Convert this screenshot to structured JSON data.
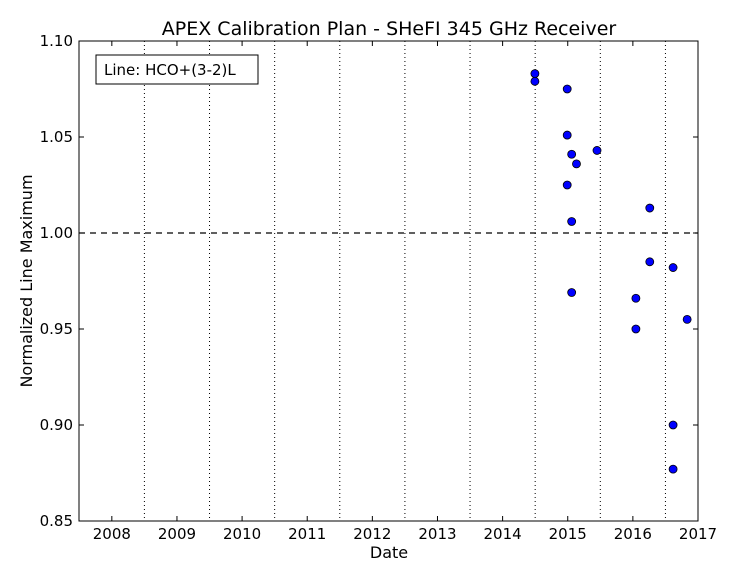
{
  "chart_data": {
    "type": "scatter",
    "title": "APEX Calibration Plan - SHeFI 345 GHz Receiver",
    "xlabel": "Date",
    "ylabel": "Normalized Line Maximum",
    "xlim": [
      "2007-07-01",
      "2017-01-01"
    ],
    "ylim": [
      0.85,
      1.1
    ],
    "x_ticks": [
      "2008",
      "2009",
      "2010",
      "2011",
      "2012",
      "2013",
      "2014",
      "2015",
      "2016",
      "2017"
    ],
    "y_ticks": [
      "0.85",
      "0.90",
      "0.95",
      "1.00",
      "1.05",
      "1.10"
    ],
    "x_grid": "dotted vertical lines at the midpoints between year labels",
    "reference_line": {
      "y": 1.0,
      "style": "dashed"
    },
    "legend": {
      "text": "Line: HCO+(3-2)L",
      "placement": "top-left"
    },
    "marker_color": "#0000ff",
    "series": [
      {
        "points": [
          {
            "x": "2014-07-01",
            "y": 1.083
          },
          {
            "x": "2014-07-01",
            "y": 1.079
          },
          {
            "x": "2014-12-29",
            "y": 1.075
          },
          {
            "x": "2014-12-29",
            "y": 1.051
          },
          {
            "x": "2014-12-29",
            "y": 1.025
          },
          {
            "x": "2015-01-23",
            "y": 1.041
          },
          {
            "x": "2015-01-23",
            "y": 1.006
          },
          {
            "x": "2015-01-23",
            "y": 0.969
          },
          {
            "x": "2015-02-19",
            "y": 1.036
          },
          {
            "x": "2015-06-14",
            "y": 1.043
          },
          {
            "x": "2016-01-18",
            "y": 0.966
          },
          {
            "x": "2016-01-18",
            "y": 0.95
          },
          {
            "x": "2016-04-05",
            "y": 1.013
          },
          {
            "x": "2016-04-05",
            "y": 0.985
          },
          {
            "x": "2016-08-14",
            "y": 0.982
          },
          {
            "x": "2016-08-14",
            "y": 0.9
          },
          {
            "x": "2016-08-14",
            "y": 0.877
          },
          {
            "x": "2016-11-01",
            "y": 0.955
          }
        ]
      }
    ]
  }
}
